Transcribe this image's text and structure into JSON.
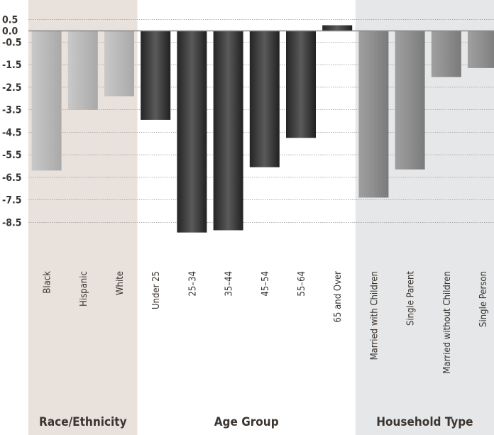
{
  "chart_data": {
    "type": "bar",
    "title": "",
    "xlabel": "",
    "ylabel": "",
    "ylim": [
      -8.7,
      0.6
    ],
    "y_ticks": [
      "0.5",
      "0.0",
      "-0.5",
      "-1.5",
      "-2.5",
      "-3.5",
      "-4.5",
      "-5.5",
      "-6.5",
      "-7.5",
      "-8.5"
    ],
    "y_tick_values": [
      0.5,
      0.0,
      -0.5,
      -1.5,
      -2.5,
      -3.5,
      -4.5,
      -5.5,
      -6.5,
      -7.5,
      -8.5
    ],
    "grid": true,
    "groups": [
      {
        "name": "Race/Ethnicity",
        "background": "#e8e1dc",
        "bar_color": "#bcbcbc",
        "categories": [
          "Black",
          "Hispanic",
          "White"
        ],
        "values": [
          -6.2,
          -3.5,
          -2.9
        ]
      },
      {
        "name": "Age Group",
        "background": "#ffffff",
        "bar_color": "#3c3c3c",
        "categories": [
          "Under 25",
          "25–34",
          "35–44",
          "45–54",
          "55–64",
          "65 and Over"
        ],
        "values": [
          -3.95,
          -8.95,
          -8.85,
          -6.05,
          -4.75,
          0.25
        ]
      },
      {
        "name": "Household Type",
        "background": "#e6e7e8",
        "bar_color": "#8f8f8f",
        "categories": [
          "Married with Children",
          "Single Parent",
          "Married without Children",
          "Single Person"
        ],
        "values": [
          -7.4,
          -6.15,
          -2.05,
          -1.65
        ]
      }
    ]
  }
}
